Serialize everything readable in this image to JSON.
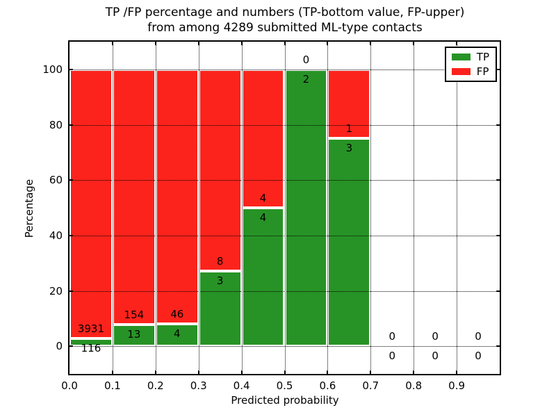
{
  "title": {
    "line1": "TP /FP percentage and numbers (TP-bottom value, FP-upper)",
    "line2": "from among 4289 submitted ML-type contacts"
  },
  "chart_data": {
    "type": "bar",
    "stacked": true,
    "title": "TP /FP percentage and numbers (TP-bottom value, FP-upper) from among 4289 submitted ML-type contacts",
    "xlabel": "Predicted probability",
    "ylabel": "Percentage",
    "xlim": [
      0.0,
      1.0
    ],
    "ylim": [
      -10,
      110
    ],
    "grid": true,
    "x_ticks": [
      "0.0",
      "0.1",
      "0.2",
      "0.3",
      "0.4",
      "0.5",
      "0.6",
      "0.7",
      "0.8",
      "0.9"
    ],
    "y_ticks": [
      0,
      20,
      40,
      60,
      80,
      100
    ],
    "series": [
      {
        "name": "TP",
        "color": "#279326"
      },
      {
        "name": "FP",
        "color": "#fc231c"
      }
    ],
    "bar_edge_color": "#ffffff",
    "bins": [
      {
        "x0": 0.0,
        "x1": 0.1,
        "tp": 116,
        "fp": 3931
      },
      {
        "x0": 0.1,
        "x1": 0.2,
        "tp": 13,
        "fp": 154
      },
      {
        "x0": 0.2,
        "x1": 0.3,
        "tp": 4,
        "fp": 46
      },
      {
        "x0": 0.3,
        "x1": 0.4,
        "tp": 3,
        "fp": 8
      },
      {
        "x0": 0.4,
        "x1": 0.5,
        "tp": 4,
        "fp": 4
      },
      {
        "x0": 0.5,
        "x1": 0.6,
        "tp": 2,
        "fp": 0
      },
      {
        "x0": 0.6,
        "x1": 0.7,
        "tp": 3,
        "fp": 1
      },
      {
        "x0": 0.7,
        "x1": 0.8,
        "tp": 0,
        "fp": 0
      },
      {
        "x0": 0.8,
        "x1": 0.9,
        "tp": 0,
        "fp": 0
      },
      {
        "x0": 0.9,
        "x1": 1.0,
        "tp": 0,
        "fp": 0
      }
    ],
    "legend": {
      "position": "upper right",
      "entries": [
        "TP",
        "FP"
      ]
    }
  }
}
